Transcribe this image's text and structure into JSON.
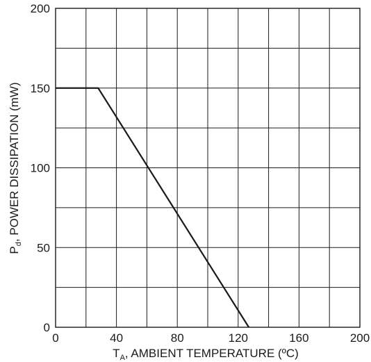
{
  "chart_data": {
    "type": "line",
    "title": "",
    "xlabel": {
      "main": "T",
      "sub": "A",
      "rest": ", AMBIENT TEMPERATURE (ºC)"
    },
    "ylabel": {
      "main": "P",
      "sub": "d",
      "rest": ", POWER DISSIPATION (mW)"
    },
    "xlim": [
      0,
      200
    ],
    "ylim": [
      0,
      200
    ],
    "x_ticks": [
      0,
      40,
      80,
      120,
      160,
      200
    ],
    "y_ticks": [
      0,
      50,
      100,
      150,
      200
    ],
    "x_grid_step": 20,
    "y_grid_step": 25,
    "grid": true,
    "legend": "none",
    "series": [
      {
        "x": [
          0,
          28,
          127
        ],
        "y": [
          150,
          150,
          0
        ]
      }
    ],
    "colors": {
      "line": "#1a1a1a",
      "grid": "#1a1a1a",
      "text": "#1a1a1a"
    }
  }
}
